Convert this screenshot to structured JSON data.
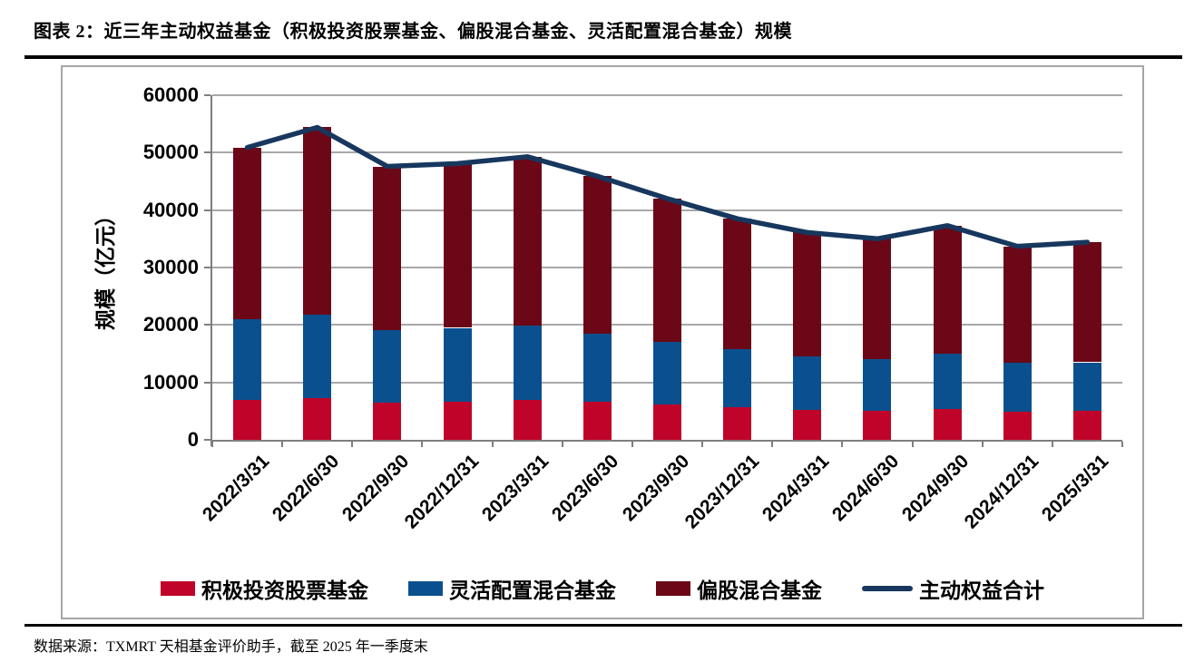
{
  "header": {
    "title": "图表 2：近三年主动权益基金（积极投资股票基金、偏股混合基金、灵活配置混合基金）规模"
  },
  "footer": {
    "source": "数据来源：TXMRT 天相基金评价助手，截至 2025 年一季度末"
  },
  "chart_data": {
    "type": "bar",
    "subtype": "stacked-bar-with-line",
    "title": "",
    "xlabel": "",
    "ylabel": "规模（亿元）",
    "ylim": [
      0,
      60000
    ],
    "yticks": [
      0,
      10000,
      20000,
      30000,
      40000,
      50000,
      60000
    ],
    "grid": true,
    "legend_position": "bottom",
    "categories": [
      "2022/3/31",
      "2022/6/30",
      "2022/9/30",
      "2022/12/31",
      "2023/3/31",
      "2023/6/30",
      "2023/9/30",
      "2023/12/31",
      "2024/3/31",
      "2024/6/30",
      "2024/9/30",
      "2024/12/31",
      "2025/3/31"
    ],
    "series": [
      {
        "name": "积极投资股票基金",
        "type": "bar",
        "color": "#c00429",
        "values": [
          7000,
          7300,
          6400,
          6600,
          7000,
          6600,
          6200,
          5700,
          5200,
          5000,
          5300,
          4900,
          5000
        ]
      },
      {
        "name": "灵活配置混合基金",
        "type": "bar",
        "color": "#0b508e",
        "values": [
          14000,
          14500,
          12700,
          12900,
          12900,
          11900,
          10800,
          10100,
          9400,
          9000,
          9700,
          8500,
          8500
        ]
      },
      {
        "name": "偏股混合基金",
        "type": "bar",
        "color": "#6b0717",
        "values": [
          29900,
          32600,
          28500,
          28600,
          29400,
          27400,
          25000,
          22700,
          21500,
          21000,
          22300,
          20300,
          20900
        ]
      },
      {
        "name": "主动权益合计",
        "type": "line",
        "color": "#17375e",
        "values": [
          50900,
          54400,
          47600,
          48100,
          49300,
          45900,
          42000,
          38500,
          36100,
          35000,
          37300,
          33700,
          34400
        ]
      }
    ],
    "axis_colors": {
      "gridline": "#a8a8a8",
      "axis": "#7f7f7f"
    }
  }
}
